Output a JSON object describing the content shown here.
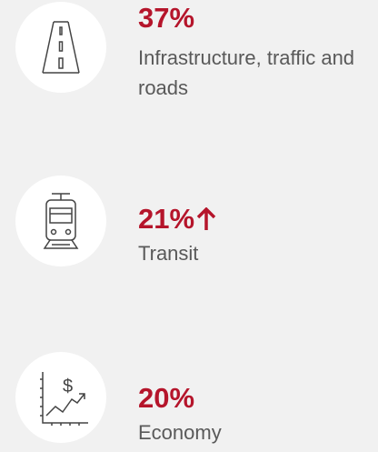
{
  "items": [
    {
      "value": "37%",
      "label": "Infrastructure, traffic and roads"
    },
    {
      "value": "21%",
      "label": "Transit"
    },
    {
      "value": "20%",
      "label": "Economy"
    }
  ]
}
